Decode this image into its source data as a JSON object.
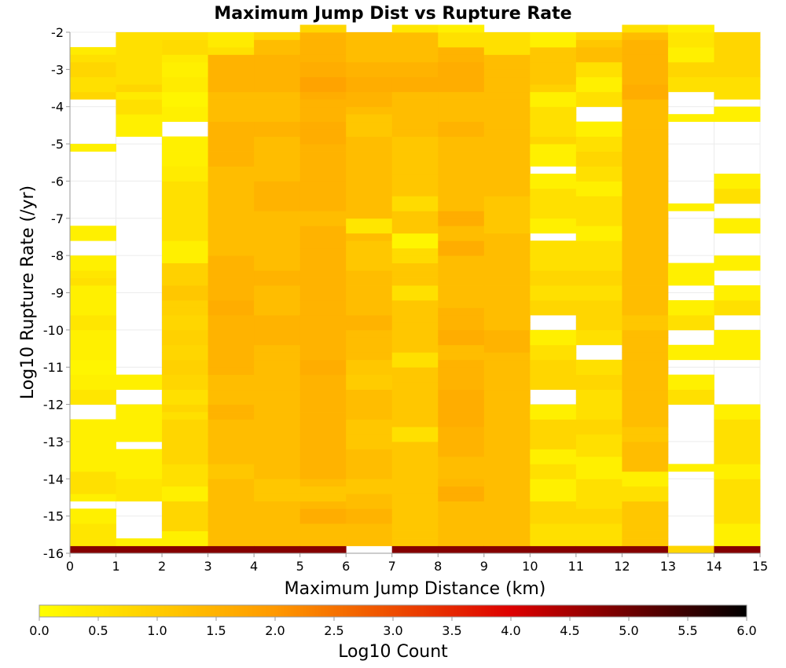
{
  "chart_data": {
    "type": "heatmap",
    "title": "Maximum Jump Dist vs Rupture Rate",
    "xlabel": "Maximum Jump Distance (km)",
    "ylabel": "Log10 Rupture Rate (/yr)",
    "xlim": [
      0,
      15
    ],
    "ylim": [
      -16,
      -2
    ],
    "x_ticks": [
      "0",
      "1",
      "2",
      "3",
      "4",
      "5",
      "6",
      "7",
      "8",
      "9",
      "10",
      "11",
      "12",
      "13",
      "14",
      "15"
    ],
    "y_ticks": [
      "-2",
      "-3",
      "-4",
      "-5",
      "-6",
      "-7",
      "-8",
      "-9",
      "-10",
      "-11",
      "-12",
      "-13",
      "-14",
      "-15",
      "-16"
    ],
    "grid": true,
    "x_bin_width": 1,
    "y_bin_height": 0.2,
    "y_bin_start": -16,
    "color_scale": {
      "label": "Log10 Count",
      "range": [
        0,
        6
      ],
      "ticks": [
        "0.0",
        "0.5",
        "1.0",
        "1.5",
        "2.0",
        "2.5",
        "3.0",
        "3.5",
        "4.0",
        "4.5",
        "5.0",
        "5.5",
        "6.0"
      ],
      "colors": [
        "#ffff00",
        "#ff9900",
        "#dd0000",
        "#000000"
      ]
    },
    "columns": [
      [
        4.8,
        0.5,
        0.5,
        0.5,
        0.3,
        0.3,
        null,
        0.3,
        0.6,
        0.6,
        0.6,
        0.3,
        0.3,
        0.3,
        0.3,
        0.3,
        0.3,
        0.3,
        null,
        null,
        0.5,
        0.5,
        0.3,
        0.3,
        0.2,
        0.2,
        0.3,
        0.3,
        0.3,
        0.3,
        0.5,
        0.5,
        0.3,
        0.3,
        0.3,
        0.3,
        0.6,
        0.5,
        0.3,
        0.3,
        null,
        null,
        0.3,
        0.3,
        null,
        null,
        null,
        null,
        null,
        null,
        null,
        null,
        null,
        null,
        0.3,
        null,
        null,
        null,
        null,
        null,
        null,
        0.8,
        0.6,
        0.6,
        0.8,
        0.8,
        0.6,
        0.4
      ],
      [
        4.8,
        0.3,
        null,
        null,
        null,
        null,
        null,
        0.5,
        0.5,
        0.5,
        0.3,
        0.3,
        0.3,
        0.3,
        null,
        0.3,
        0.3,
        0.3,
        0.3,
        0.3,
        null,
        null,
        0.3,
        0.3,
        null,
        null,
        null,
        null,
        null,
        null,
        null,
        null,
        null,
        null,
        null,
        null,
        null,
        null,
        null,
        null,
        null,
        null,
        null,
        null,
        null,
        null,
        null,
        null,
        null,
        null,
        null,
        null,
        null,
        null,
        null,
        null,
        0.3,
        0.3,
        0.3,
        0.6,
        0.6,
        0.4,
        0.8,
        0.6,
        0.6,
        0.6,
        0.6,
        0.6,
        0.6,
        0.6
      ],
      [
        4.8,
        0.3,
        0.3,
        0.8,
        0.8,
        0.8,
        0.8,
        0.3,
        0.3,
        0.6,
        0.6,
        0.6,
        0.8,
        0.8,
        0.8,
        0.8,
        0.8,
        0.8,
        0.6,
        0.8,
        0.6,
        0.6,
        0.8,
        0.8,
        0.9,
        0.9,
        0.8,
        0.8,
        0.9,
        0.9,
        0.8,
        0.8,
        0.9,
        0.9,
        1.1,
        1.1,
        0.9,
        0.9,
        0.9,
        0.3,
        0.3,
        0.3,
        0.6,
        0.6,
        0.6,
        0.6,
        0.6,
        0.6,
        0.6,
        0.6,
        0.4,
        0.4,
        0.3,
        0.3,
        0.3,
        0.3,
        null,
        null,
        0.3,
        0.3,
        0.2,
        0.2,
        0.4,
        0.4,
        0.3,
        0.3,
        0.4,
        0.7,
        0.7,
        0.6
      ],
      [
        4.8,
        1.3,
        1.3,
        1.3,
        1.3,
        1.3,
        1.3,
        1.3,
        1.3,
        1.3,
        1.1,
        1.1,
        1.3,
        1.3,
        1.3,
        1.3,
        1.3,
        1.3,
        1.5,
        1.5,
        1.3,
        1.3,
        1.3,
        1.3,
        1.5,
        1.5,
        1.5,
        1.5,
        1.5,
        1.5,
        1.5,
        1.5,
        1.6,
        1.6,
        1.5,
        1.5,
        1.5,
        1.5,
        1.5,
        1.5,
        1.3,
        1.3,
        1.3,
        1.3,
        1.3,
        1.3,
        1.3,
        1.3,
        1.3,
        1.3,
        1.3,
        1.3,
        1.5,
        1.5,
        1.5,
        1.5,
        1.5,
        1.5,
        1.3,
        1.3,
        1.3,
        1.3,
        1.5,
        1.5,
        1.5,
        1.5,
        1.5,
        0.6,
        0.4,
        0.4
      ],
      [
        4.8,
        1.3,
        1.3,
        1.3,
        1.3,
        1.3,
        1.3,
        1.1,
        1.1,
        1.1,
        1.3,
        1.3,
        1.3,
        1.3,
        1.3,
        1.3,
        1.3,
        1.3,
        1.3,
        1.3,
        1.3,
        1.3,
        1.3,
        1.3,
        1.3,
        1.3,
        1.3,
        1.3,
        1.5,
        1.5,
        1.5,
        1.5,
        1.3,
        1.3,
        1.3,
        1.3,
        1.5,
        1.5,
        1.3,
        1.3,
        1.3,
        1.3,
        1.3,
        1.3,
        1.3,
        1.3,
        1.5,
        1.5,
        1.5,
        1.5,
        1.3,
        1.3,
        1.3,
        1.3,
        1.3,
        1.3,
        1.5,
        1.5,
        1.3,
        1.3,
        1.3,
        1.3,
        1.5,
        1.5,
        1.5,
        1.5,
        1.5,
        1.3,
        1.3,
        0.8
      ],
      [
        4.8,
        1.3,
        1.3,
        1.3,
        1.6,
        1.6,
        1.4,
        1.1,
        1.1,
        1.3,
        1.5,
        1.5,
        1.5,
        1.5,
        1.5,
        1.5,
        1.5,
        1.5,
        1.5,
        1.5,
        1.5,
        1.5,
        1.5,
        1.5,
        1.6,
        1.6,
        1.5,
        1.5,
        1.5,
        1.5,
        1.5,
        1.5,
        1.5,
        1.5,
        1.5,
        1.5,
        1.5,
        1.5,
        1.5,
        1.5,
        1.5,
        1.5,
        1.5,
        1.5,
        1.3,
        1.3,
        1.5,
        1.5,
        1.5,
        1.5,
        1.5,
        1.5,
        1.5,
        1.5,
        1.5,
        1.6,
        1.6,
        1.6,
        1.5,
        1.5,
        1.5,
        1.6,
        1.8,
        1.8,
        1.6,
        1.6,
        1.5,
        1.5,
        1.5,
        1.5,
        0.8
      ],
      [
        null,
        1.3,
        1.3,
        1.3,
        1.5,
        1.5,
        1.3,
        1.3,
        1.1,
        1.1,
        1.3,
        1.3,
        1.3,
        1.3,
        1.1,
        1.1,
        1.1,
        1.1,
        1.3,
        1.3,
        1.3,
        1.3,
        1.0,
        1.0,
        1.1,
        1.1,
        1.3,
        1.3,
        1.3,
        1.3,
        1.5,
        1.5,
        1.3,
        1.3,
        1.3,
        1.3,
        1.3,
        1.3,
        1.1,
        1.1,
        1.1,
        1.1,
        1.3,
        0.5,
        0.5,
        1.3,
        1.3,
        1.3,
        1.3,
        1.3,
        1.3,
        1.3,
        1.3,
        1.3,
        1.3,
        1.3,
        1.1,
        1.1,
        1.1,
        1.3,
        1.5,
        1.5,
        1.6,
        1.6,
        1.5,
        1.5,
        1.3,
        1.3,
        1.3,
        1.3
      ],
      [
        4.8,
        1.1,
        1.1,
        1.1,
        1.1,
        1.1,
        1.1,
        1.1,
        1.1,
        1.1,
        1.1,
        1.1,
        1.1,
        1.1,
        1.1,
        0.6,
        0.6,
        1.1,
        1.1,
        1.1,
        1.1,
        1.1,
        1.1,
        1.1,
        1.1,
        0.6,
        0.6,
        1.1,
        1.1,
        1.1,
        1.1,
        1.1,
        1.1,
        1.1,
        0.6,
        0.6,
        1.1,
        1.1,
        1.1,
        0.7,
        0.7,
        0.2,
        0.2,
        1.1,
        1.1,
        1.1,
        0.7,
        0.7,
        1.1,
        1.1,
        1.1,
        1.1,
        1.1,
        1.1,
        1.1,
        1.1,
        1.3,
        1.3,
        1.3,
        1.3,
        1.3,
        1.3,
        1.6,
        1.6,
        1.5,
        1.5,
        1.3,
        1.3,
        1.3,
        1.3,
        0.5
      ],
      [
        4.8,
        1.3,
        1.3,
        1.3,
        1.3,
        1.3,
        1.3,
        1.6,
        1.6,
        1.4,
        1.3,
        1.3,
        1.3,
        1.5,
        1.5,
        1.5,
        1.5,
        1.6,
        1.6,
        1.6,
        1.6,
        1.6,
        1.5,
        1.5,
        1.5,
        1.5,
        1.3,
        1.3,
        1.6,
        1.6,
        1.5,
        1.5,
        1.5,
        1.3,
        1.3,
        1.3,
        1.3,
        1.3,
        1.3,
        1.3,
        1.6,
        1.6,
        1.3,
        1.3,
        1.6,
        1.6,
        1.3,
        1.3,
        1.3,
        1.3,
        1.3,
        1.3,
        1.3,
        1.3,
        1.3,
        1.3,
        1.5,
        1.5,
        1.3,
        1.3,
        1.3,
        1.3,
        1.6,
        1.6,
        1.6,
        1.6,
        1.5,
        1.5,
        0.6,
        0.6,
        0.3
      ],
      [
        4.8,
        1.3,
        1.3,
        1.3,
        1.3,
        1.3,
        1.3,
        1.3,
        1.3,
        1.3,
        1.3,
        1.3,
        1.3,
        1.3,
        1.3,
        1.3,
        1.3,
        1.3,
        1.3,
        1.3,
        1.3,
        1.3,
        1.3,
        1.3,
        1.3,
        1.3,
        1.3,
        1.5,
        1.5,
        1.5,
        1.3,
        1.3,
        1.3,
        1.3,
        1.3,
        1.3,
        1.3,
        1.3,
        1.3,
        1.3,
        1.3,
        1.3,
        1.3,
        1.1,
        1.1,
        1.1,
        1.1,
        1.1,
        1.3,
        1.3,
        1.3,
        1.3,
        1.3,
        1.3,
        1.3,
        1.3,
        1.3,
        1.3,
        1.3,
        1.3,
        1.3,
        1.3,
        1.3,
        1.3,
        1.3,
        1.3,
        1.3,
        0.6,
        0.6,
        0.6
      ],
      [
        4.8,
        0.6,
        0.6,
        0.6,
        0.8,
        0.8,
        0.8,
        0.3,
        0.3,
        0.3,
        0.6,
        0.6,
        0.3,
        0.3,
        0.8,
        0.8,
        0.8,
        0.8,
        0.3,
        0.3,
        null,
        null,
        0.8,
        0.8,
        0.8,
        0.8,
        0.6,
        0.6,
        0.3,
        0.3,
        null,
        null,
        0.8,
        0.8,
        0.6,
        0.6,
        0.8,
        0.8,
        0.6,
        0.6,
        0.6,
        0.6,
        null,
        0.3,
        0.3,
        0.6,
        0.6,
        0.6,
        0.6,
        0.3,
        0.3,
        null,
        0.3,
        0.3,
        0.3,
        0.8,
        0.6,
        0.6,
        0.6,
        0.6,
        0.3,
        0.3,
        0.9,
        1.1,
        1.1,
        1.1,
        1.1,
        1.1,
        0.3,
        0.3
      ],
      [
        4.8,
        0.6,
        0.6,
        0.6,
        0.8,
        0.8,
        0.6,
        0.6,
        0.6,
        0.6,
        0.3,
        0.3,
        0.3,
        0.6,
        0.6,
        0.6,
        0.8,
        0.8,
        0.6,
        0.6,
        0.6,
        0.6,
        0.8,
        0.8,
        0.6,
        0.6,
        null,
        null,
        0.6,
        0.6,
        0.8,
        0.8,
        0.8,
        0.8,
        0.6,
        0.6,
        0.8,
        0.8,
        0.6,
        0.6,
        0.6,
        0.6,
        0.3,
        0.3,
        0.6,
        0.6,
        0.6,
        0.6,
        0.3,
        0.3,
        0.6,
        0.6,
        0.8,
        0.8,
        0.6,
        0.6,
        0.3,
        0.3,
        null,
        null,
        0.6,
        0.6,
        0.3,
        0.3,
        0.6,
        0.6,
        1.3,
        1.3,
        1.1,
        0.8
      ],
      [
        4.8,
        1.1,
        1.1,
        1.1,
        1.1,
        1.1,
        1.1,
        0.6,
        0.6,
        0.3,
        0.3,
        1.3,
        1.3,
        1.3,
        1.3,
        1.1,
        1.1,
        1.3,
        1.3,
        1.3,
        1.3,
        1.3,
        1.3,
        1.3,
        1.3,
        1.3,
        1.3,
        1.3,
        1.3,
        1.3,
        1.1,
        1.1,
        1.3,
        1.3,
        1.3,
        1.3,
        1.3,
        1.3,
        1.3,
        1.3,
        1.3,
        1.3,
        1.3,
        1.3,
        1.3,
        1.3,
        1.3,
        1.3,
        1.3,
        1.3,
        1.3,
        1.3,
        1.3,
        1.3,
        1.3,
        1.3,
        1.3,
        1.3,
        1.3,
        1.3,
        1.3,
        1.6,
        1.6,
        1.5,
        1.5,
        1.5,
        1.5,
        1.5,
        1.5,
        1.3,
        0.6
      ],
      [
        0.8,
        null,
        null,
        null,
        null,
        null,
        null,
        null,
        null,
        null,
        null,
        0.3,
        null,
        null,
        null,
        null,
        null,
        null,
        null,
        null,
        0.6,
        0.6,
        0.3,
        0.3,
        null,
        null,
        0.3,
        0.3,
        null,
        null,
        0.6,
        0.6,
        0.3,
        0.3,
        null,
        null,
        0.3,
        0.3,
        0.3,
        null,
        null,
        null,
        null,
        null,
        null,
        null,
        0.3,
        null,
        null,
        null,
        null,
        null,
        null,
        null,
        null,
        null,
        null,
        null,
        0.3,
        null,
        null,
        null,
        0.6,
        0.6,
        0.8,
        0.8,
        0.3,
        0.3,
        0.5,
        0.5,
        0.3
      ],
      [
        4.8,
        0.3,
        0.3,
        0.3,
        0.6,
        0.6,
        0.6,
        0.6,
        0.6,
        0.6,
        0.3,
        0.3,
        0.6,
        0.6,
        0.6,
        0.6,
        0.6,
        0.6,
        0.3,
        0.3,
        null,
        null,
        null,
        null,
        null,
        null,
        0.3,
        0.3,
        0.3,
        0.3,
        null,
        null,
        0.6,
        0.6,
        0.3,
        0.3,
        null,
        null,
        0.3,
        0.3,
        null,
        null,
        null,
        0.3,
        0.3,
        null,
        null,
        0.6,
        0.6,
        0.3,
        0.3,
        null,
        null,
        null,
        null,
        null,
        null,
        null,
        0.3,
        0.3,
        null,
        0.6,
        0.6,
        0.6,
        0.8,
        0.8,
        0.8,
        0.8,
        0.8,
        0.8
      ]
    ]
  }
}
